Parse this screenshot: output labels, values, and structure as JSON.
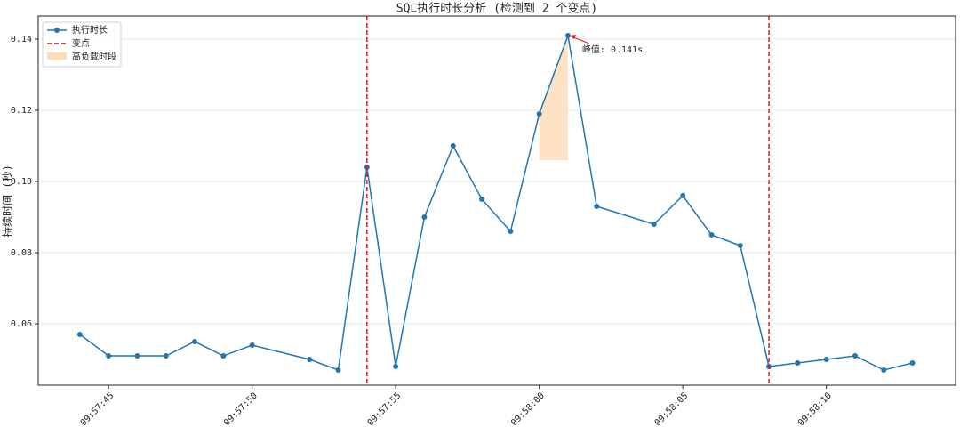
{
  "chart_data": {
    "type": "line",
    "title": "SQL执行时长分析 (检测到 2 个变点)",
    "y_label": "持续时间 (秒)",
    "x": [
      "09:57:44",
      "09:57:45",
      "09:57:46",
      "09:57:47",
      "09:57:48",
      "09:57:49",
      "09:57:50",
      "09:57:52",
      "09:57:53",
      "09:57:54",
      "09:57:55",
      "09:57:56",
      "09:57:57",
      "09:57:58",
      "09:57:59",
      "09:58:00",
      "09:58:01",
      "09:58:02",
      "09:58:04",
      "09:58:05",
      "09:58:06",
      "09:58:07",
      "09:58:08",
      "09:58:09",
      "09:58:10",
      "09:58:11",
      "09:58:12",
      "09:58:13"
    ],
    "series": [
      {
        "name": "执行时长",
        "color": "#1f77b4",
        "values": [
          0.057,
          0.051,
          0.051,
          0.051,
          0.055,
          0.051,
          0.054,
          0.05,
          0.047,
          0.104,
          0.048,
          0.09,
          0.11,
          0.095,
          0.086,
          0.119,
          0.141,
          0.093,
          0.088,
          0.096,
          0.085,
          0.082,
          0.048,
          0.049,
          0.05,
          0.051,
          0.047,
          0.049
        ]
      }
    ],
    "change_points": [
      "09:57:54",
      "09:58:08"
    ],
    "change_label": "变点",
    "change_color": "#e31a1c",
    "high_load": {
      "name": "高负载时段",
      "x": [
        "09:58:00",
        "09:58:01"
      ],
      "threshold": 0.106,
      "color": "#ffdcb8"
    },
    "annotation": {
      "text": "峰值: 0.141s",
      "x": "09:58:01",
      "y": 0.141
    },
    "xlim": [
      "09:57:42.55",
      "09:58:14.5"
    ],
    "xticks": [
      "09:57:45",
      "09:57:50",
      "09:57:55",
      "09:58:00",
      "09:58:05",
      "09:58:10"
    ],
    "ylim": [
      0.04275,
      0.1465
    ],
    "yticks": [
      0.06,
      0.08,
      {
        "value": 0.1,
        "label": "0.10"
      },
      0.12,
      0.14
    ],
    "grid": true,
    "legend": "upper left"
  }
}
